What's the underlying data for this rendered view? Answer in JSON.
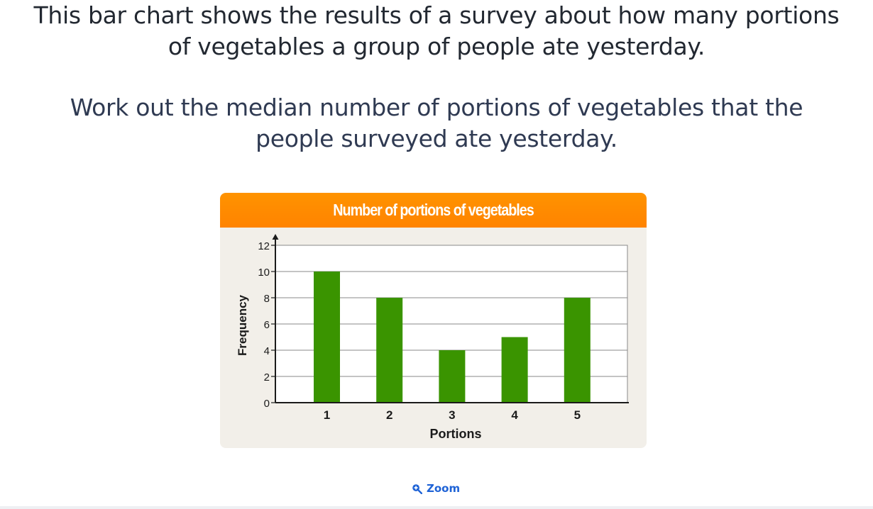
{
  "question": {
    "intro_lines": [
      "This bar chart shows the results of a survey about how many portions",
      "of vegetables a group of people ate yesterday."
    ],
    "task_lines": [
      "Work out the median number of portions of vegetables that the",
      "people surveyed ate yesterday."
    ]
  },
  "chart_data": {
    "type": "bar",
    "title": "Number of portions of vegetables",
    "xlabel": "Portions",
    "ylabel": "Frequency",
    "categories": [
      "1",
      "2",
      "3",
      "4",
      "5"
    ],
    "values": [
      10,
      8,
      4,
      5,
      8
    ],
    "ylim": [
      0,
      12
    ],
    "yticks": [
      "0",
      "2",
      "4",
      "6",
      "8",
      "10",
      "12"
    ],
    "grid": true,
    "legend": "none",
    "colors": {
      "header": "#ff8c00",
      "bar": "#3a9400",
      "panel": "#f2efe9"
    }
  },
  "actions": {
    "zoom_label": "Zoom",
    "zoom_icon": "zoom-in-icon"
  }
}
